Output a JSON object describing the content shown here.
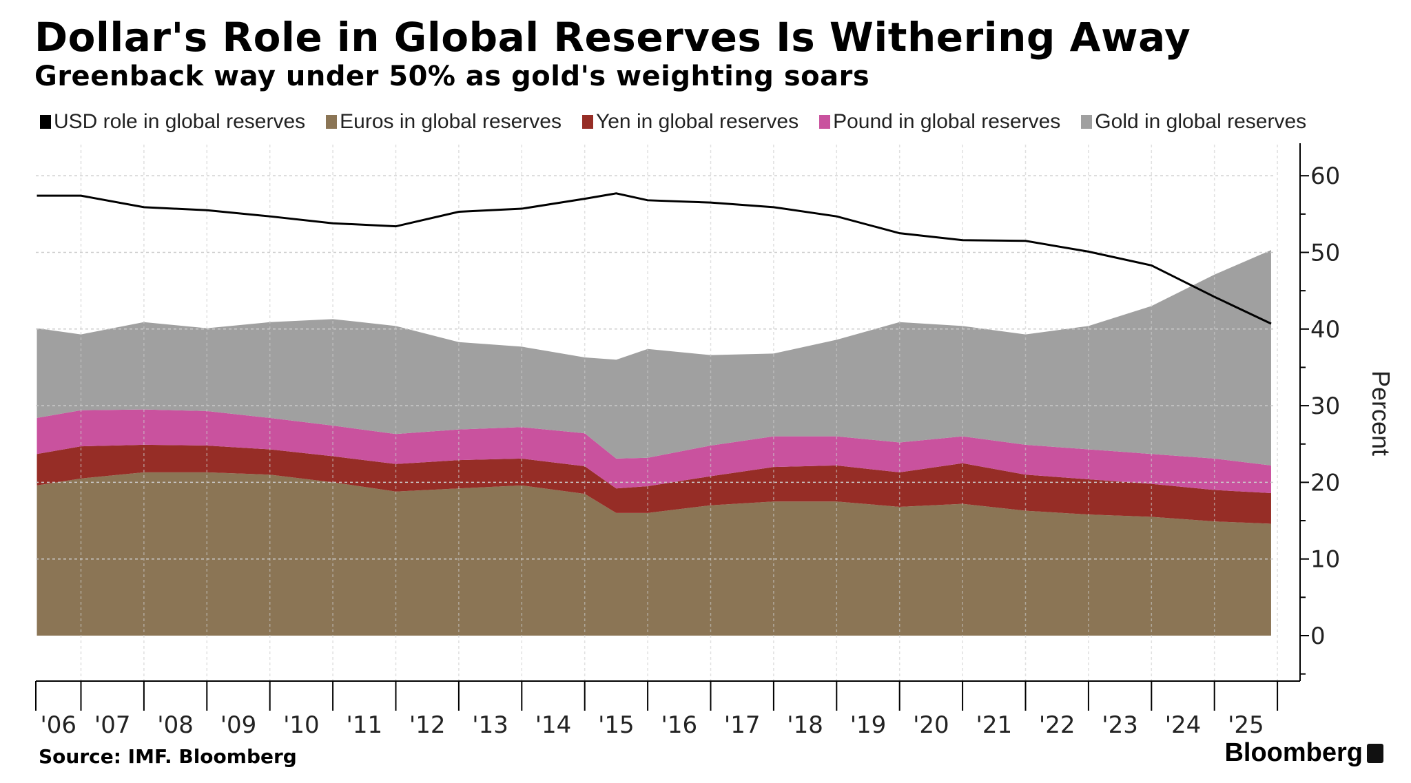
{
  "title": "Dollar's Role in Global Reserves Is Withering Away",
  "subtitle": "Greenback way under 50% as gold's weighting soars",
  "source": "Source: IMF. Bloomberg",
  "brand": "Bloomberg",
  "chart_data": {
    "type": "area",
    "stacked_series": [
      "Euros in global reserves",
      "Yen in global reserves",
      "Pound in global reserves",
      "Gold in global reserves"
    ],
    "line_series": [
      "USD role in global reserves"
    ],
    "x": [
      2006.3,
      2007,
      2008,
      2009,
      2010,
      2011,
      2012,
      2013,
      2014,
      2015,
      2015.5,
      2016,
      2017,
      2018,
      2019,
      2020,
      2021,
      2022,
      2023,
      2024,
      2025,
      2025.9
    ],
    "series": [
      {
        "name": "USD role in global reserves",
        "color": "#000000",
        "kind": "line",
        "values": [
          57.4,
          57.4,
          55.9,
          55.5,
          54.7,
          53.8,
          53.4,
          55.3,
          55.7,
          57.0,
          57.7,
          56.8,
          56.5,
          55.9,
          54.7,
          52.5,
          51.6,
          51.5,
          50.1,
          48.3,
          44.2,
          40.7
        ]
      },
      {
        "name": "Euros in global reserves",
        "color": "#8b7555",
        "kind": "area",
        "values": [
          19.6,
          20.5,
          21.3,
          21.3,
          21.0,
          20.0,
          18.8,
          19.2,
          19.6,
          18.5,
          16.0,
          16.0,
          17.0,
          17.5,
          17.5,
          16.8,
          17.2,
          16.3,
          15.8,
          15.5,
          14.9,
          14.6
        ]
      },
      {
        "name": "Yen in global reserves",
        "color": "#962d26",
        "kind": "area",
        "values": [
          4.1,
          4.2,
          3.6,
          3.5,
          3.3,
          3.4,
          3.6,
          3.7,
          3.5,
          3.6,
          3.2,
          3.5,
          3.8,
          4.5,
          4.7,
          4.5,
          5.3,
          4.7,
          4.6,
          4.3,
          4.1,
          4.0
        ]
      },
      {
        "name": "Pound in global reserves",
        "color": "#c9529e",
        "kind": "area",
        "values": [
          4.7,
          4.7,
          4.6,
          4.5,
          4.1,
          4.0,
          3.9,
          4.0,
          4.1,
          4.3,
          3.9,
          3.7,
          4.0,
          4.0,
          3.8,
          3.9,
          3.5,
          3.9,
          3.9,
          3.9,
          4.1,
          3.6
        ]
      },
      {
        "name": "Gold in global reserves",
        "color": "#a0a0a0",
        "kind": "area",
        "values": [
          11.7,
          9.9,
          11.4,
          10.8,
          12.5,
          13.9,
          14.1,
          11.4,
          10.5,
          9.9,
          12.9,
          14.2,
          11.8,
          10.8,
          12.6,
          15.7,
          14.4,
          14.4,
          16.1,
          19.3,
          24.0,
          28.1
        ]
      }
    ],
    "legend": [
      "USD role in global reserves",
      "Euros in global reserves",
      "Yen in global reserves",
      "Pound in global reserves",
      "Gold in global reserves"
    ],
    "legend_placement": "top",
    "x_tick_labels": [
      "'06",
      "'07",
      "'08",
      "'09",
      "'10",
      "'11",
      "'12",
      "'13",
      "'14",
      "'15",
      "'16",
      "'17",
      "'18",
      "'19",
      "'20",
      "'21",
      "'22",
      "'23",
      "'24",
      "'25"
    ],
    "y_ticks": [
      0,
      10,
      20,
      30,
      40,
      50,
      60
    ],
    "ylabel": "Percent",
    "ylim": [
      -6,
      64
    ],
    "y_axis_side": "right",
    "grid": true
  }
}
